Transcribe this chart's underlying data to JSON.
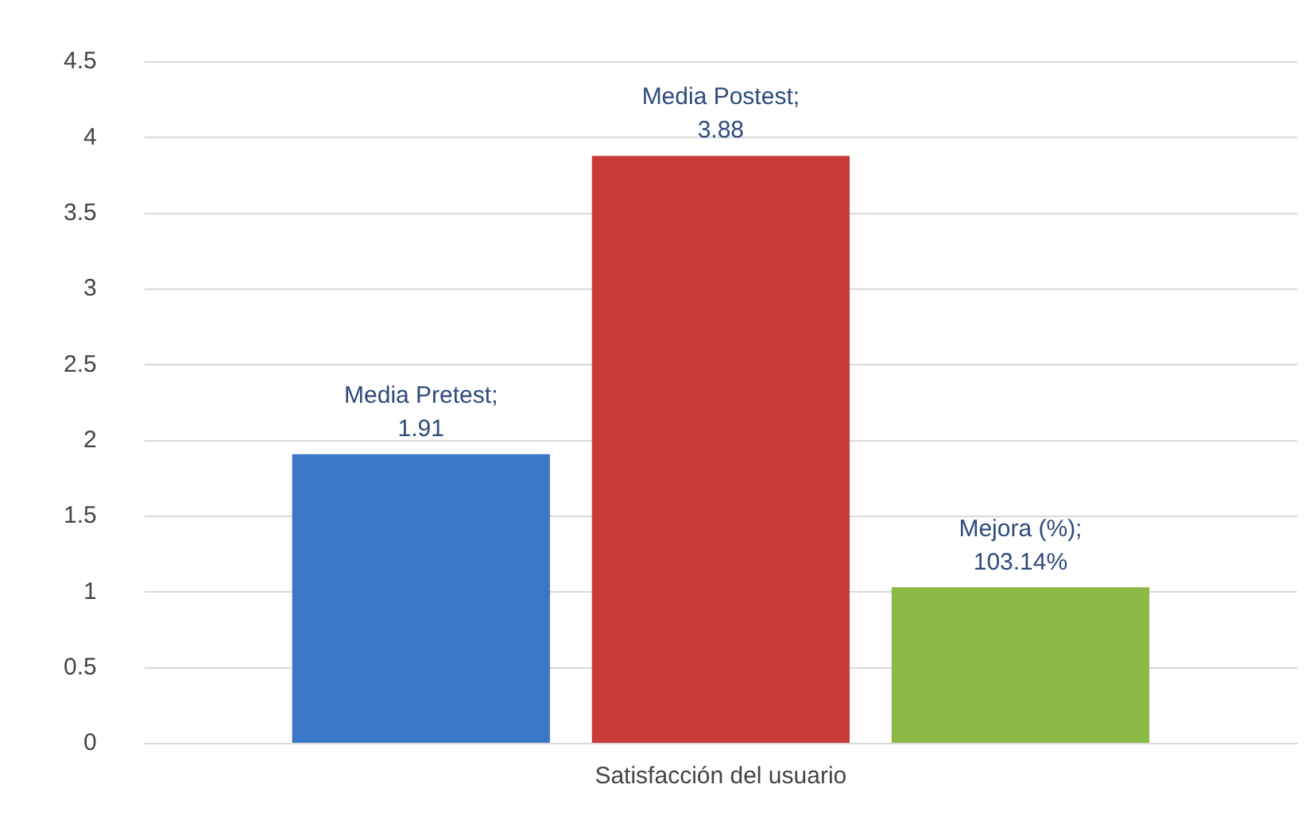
{
  "chart_data": {
    "type": "bar",
    "categories": [
      "Satisfacción del usuario"
    ],
    "series": [
      {
        "name": "Media Pretest;",
        "color": "#3a78c6",
        "values": [
          1.91
        ],
        "value_labels": [
          "1.91"
        ]
      },
      {
        "name": "Media Postest;",
        "color": "#c83b37",
        "values": [
          3.88
        ],
        "value_labels": [
          "3.88"
        ]
      },
      {
        "name": "Mejora (%);",
        "color": "#8dba45",
        "values": [
          1.0314
        ],
        "value_labels": [
          "103.14%"
        ]
      }
    ],
    "ylim": [
      0,
      4.5
    ],
    "yticks": [
      0,
      0.5,
      1,
      1.5,
      2,
      2.5,
      3,
      3.5,
      4,
      4.5
    ],
    "grid": "y",
    "legend": false
  }
}
